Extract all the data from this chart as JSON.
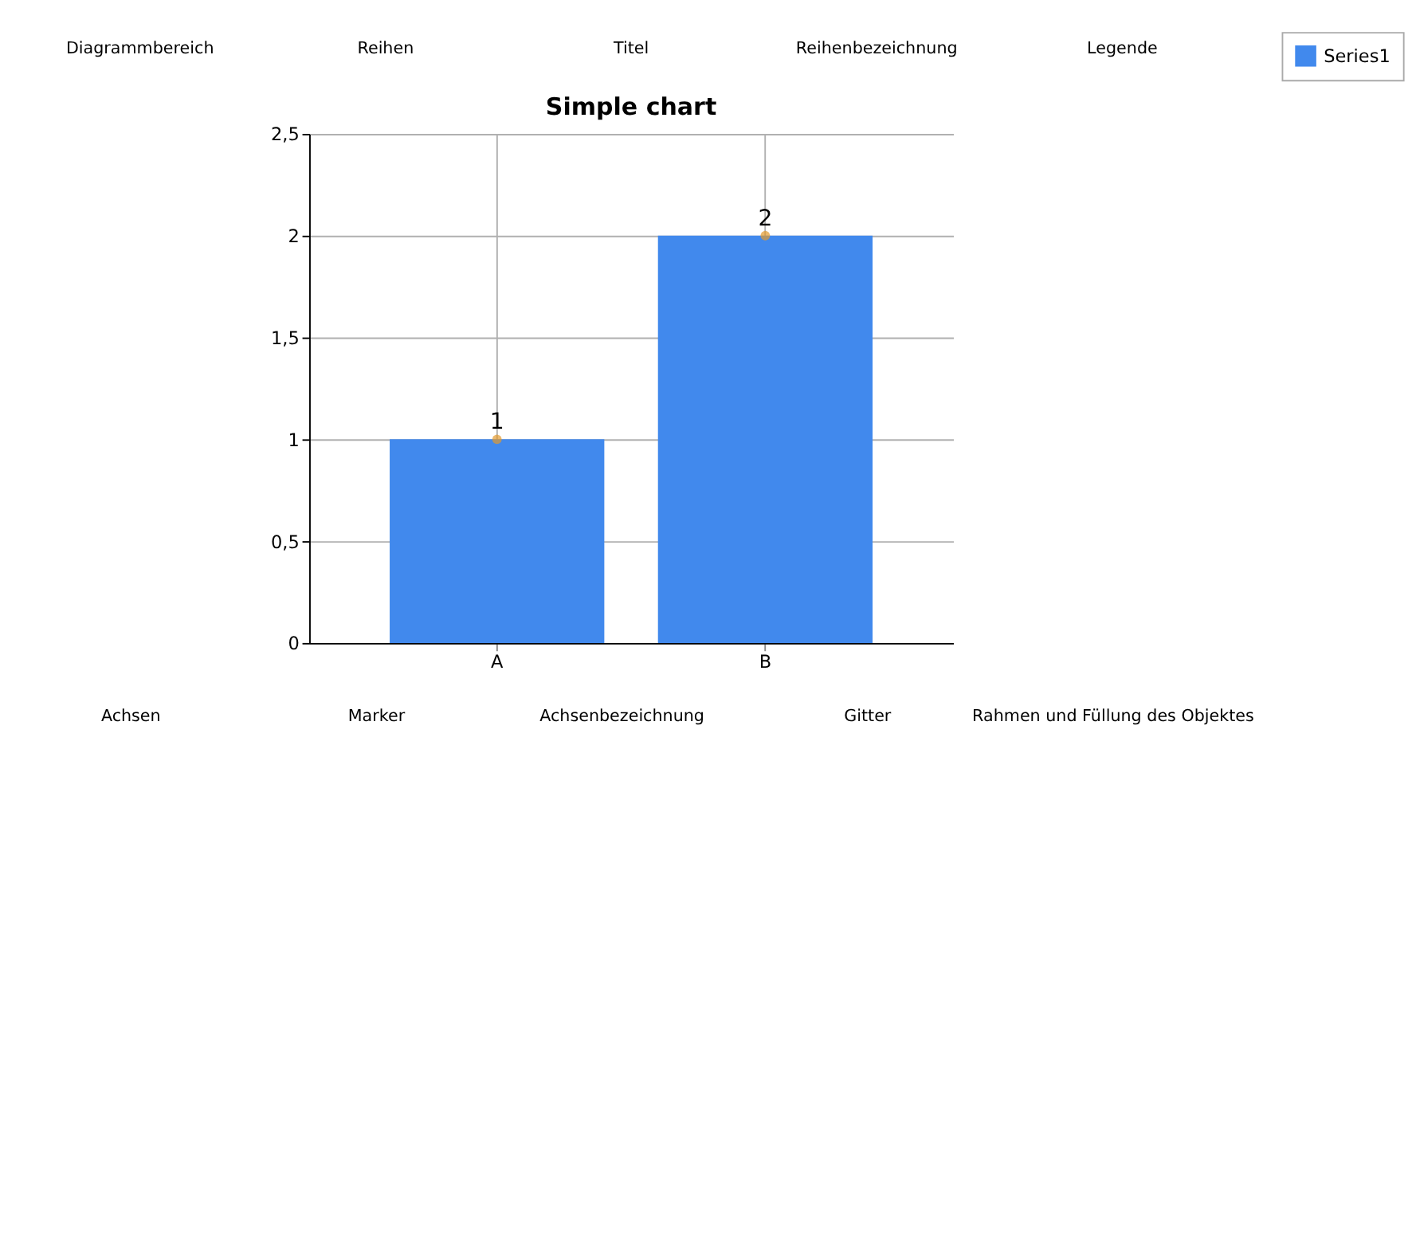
{
  "chart_data": {
    "type": "bar",
    "title": "Simple chart",
    "categories": [
      "A",
      "B"
    ],
    "series": [
      {
        "name": "Series1",
        "color": "#4189ed",
        "values": [
          1,
          2
        ],
        "value_labels": [
          "1",
          "2"
        ]
      },
      {
        "type": "scatter",
        "x": [
          "A",
          "B"
        ],
        "color": "#e39a2e",
        "values": [
          1,
          2
        ],
        "marker": "circle"
      }
    ],
    "ylim": [
      0,
      2.5
    ],
    "yticks": [
      0,
      {
        "value": 0.5,
        "label": "0,5"
      },
      1,
      {
        "value": 1.5,
        "label": "1,5"
      },
      2,
      {
        "value": 2.5,
        "label": "2,5"
      }
    ],
    "grid": true,
    "legend": "right",
    "annotations": [
      "Diagrammbereich",
      "Reihen",
      "Titel",
      "Reihenbezeichnung",
      "Legende",
      "Achsen",
      "Marker",
      "Achsenbezeichnung",
      "Gitter",
      "Rahmen und Füllung des Objektes"
    ]
  }
}
